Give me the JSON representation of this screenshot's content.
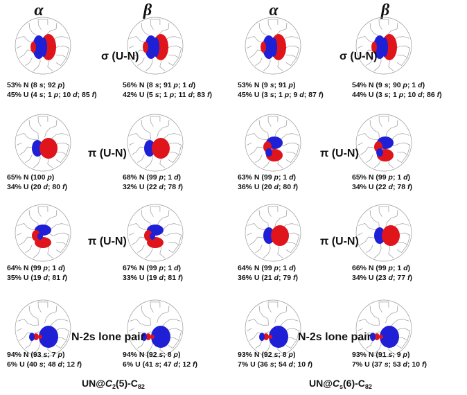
{
  "headers": [
    "α",
    "β",
    "α",
    "β"
  ],
  "orbital_labels": {
    "sigma": "σ (U-N)",
    "pi": "π (U-N)",
    "lone": "N-2s lone pair"
  },
  "molecules": {
    "left": {
      "pre": "UN@",
      "c": "C",
      "sub1": "2",
      "mid": "(5)-C",
      "sub2": "82"
    },
    "right": {
      "pre": "UN@",
      "c": "C",
      "sub1": "s",
      "mid": "(6)-C",
      "sub2": "82"
    }
  },
  "captions": [
    [
      "53% N (8 s; 92 p)",
      "45% U (4 s; 1 p; 10 d; 85 f)"
    ],
    [
      "56% N (8 s; 91 p; 1 d)",
      "42% U (5 s; 1 p; 11 d; 83 f)"
    ],
    [
      "53% N (9 s; 91 p)",
      "45% U (3 s; 1 p; 9 d; 87 f)"
    ],
    [
      "54% N (9 s; 90 p; 1 d)",
      "44% U (3 s; 1 p; 10 d; 86 f)"
    ],
    [
      "65% N (100 p)",
      "34% U (20 d; 80 f)"
    ],
    [
      "68% N (99 p; 1 d)",
      "32% U (22 d; 78 f)"
    ],
    [
      "63% N (99 p; 1 d)",
      "36% U (20 d; 80 f)"
    ],
    [
      "65% N (99 p; 1 d)",
      "34% U (22 d; 78 f)"
    ],
    [
      "64% N (99 p; 1 d)",
      "35% U (19 d; 81 f)"
    ],
    [
      "67% N (99 p; 1 d)",
      "33% U (19 d; 81 f)"
    ],
    [
      "64% N (99 p; 1 d)",
      "36% U (21 d; 79 f)"
    ],
    [
      "66% N (99 p; 1 d)",
      "34% U (23 d; 77 f)"
    ],
    [
      "94% N (93 s; 7 p)",
      "6% U (40 s; 48 d; 12 f)"
    ],
    [
      "94% N (92 s; 8 p)",
      "6% U (41 s; 47 d; 12 f)"
    ],
    [
      "93% N (92 s; 8 p)",
      "7% U (36 s; 54 d; 10 f)"
    ],
    [
      "93% N (91 s; 9 p)",
      "7% U (37 s; 53 d; 10 f)"
    ]
  ],
  "colors": {
    "blue": "#1f1fd6",
    "red": "#e0141b",
    "cage": "#9a9a9a"
  }
}
